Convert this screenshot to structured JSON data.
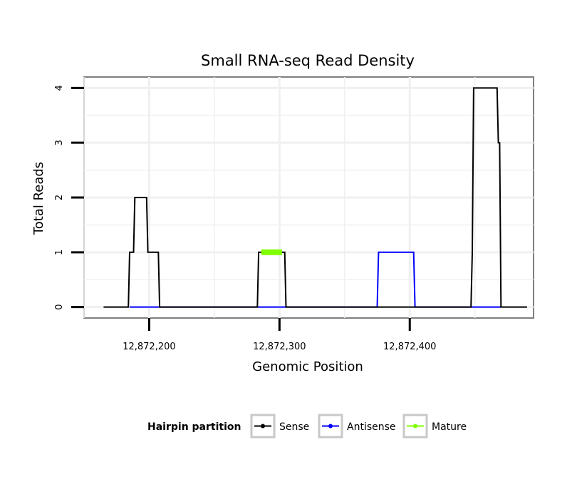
{
  "chart_data": {
    "type": "line",
    "title": "Small RNA-seq Read Density",
    "xlabel": "Genomic Position",
    "ylabel": "Total Reads",
    "xlim": [
      12872150,
      12872495
    ],
    "ylim": [
      -0.2,
      4.2
    ],
    "x_ticks": [
      12872200,
      12872300,
      12872400
    ],
    "x_tick_labels": [
      "12,872,200",
      "12,872,300",
      "12,872,400"
    ],
    "y_ticks": [
      0,
      1,
      2,
      3,
      4
    ],
    "y_tick_labels": [
      "0",
      "1",
      "2",
      "3",
      "4"
    ],
    "grid": true,
    "series": [
      {
        "name": "Sense",
        "color": "#000000",
        "x": [
          12872165,
          12872184,
          12872185,
          12872188,
          12872189,
          12872198,
          12872199,
          12872207,
          12872208,
          12872215,
          12872245,
          12872283,
          12872284,
          12872304,
          12872305,
          12872447,
          12872448,
          12872449,
          12872450,
          12872467,
          12872468,
          12872469,
          12872470,
          12872490
        ],
        "y": [
          0,
          0,
          1,
          1,
          2,
          2,
          1,
          1,
          0,
          0,
          0,
          0,
          1,
          1,
          0,
          0,
          1,
          4,
          4,
          4,
          3,
          3,
          0,
          0
        ]
      },
      {
        "name": "Antisense",
        "color": "#0000ff",
        "x": [
          12872185,
          12872208,
          12872283,
          12872305,
          12872375,
          12872376,
          12872403,
          12872404,
          12872447,
          12872470
        ],
        "y": [
          0,
          0,
          0,
          0,
          0,
          1,
          1,
          0,
          0,
          0
        ]
      },
      {
        "name": "Mature",
        "color": "#7fff00",
        "x": [
          12872286,
          12872302
        ],
        "y": [
          1,
          1
        ]
      }
    ],
    "legend": {
      "title": "Hairpin partition",
      "position": "bottom",
      "entries": [
        "Sense",
        "Antisense",
        "Mature"
      ]
    }
  }
}
